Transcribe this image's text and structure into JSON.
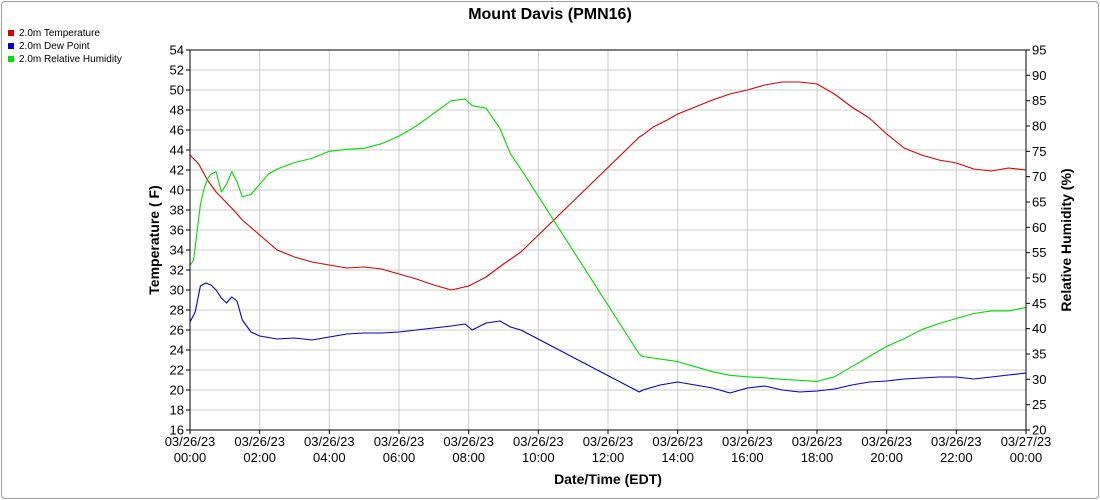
{
  "chart_data": {
    "type": "line",
    "title": "Mount Davis (PMN16)",
    "xlabel": "Date/Time (EDT)",
    "ylabel_left": "Temperature ( F)",
    "ylabel_right": "Relative Humidity (%)",
    "y_left_range": [
      16,
      54
    ],
    "y_left_ticks": [
      16,
      18,
      20,
      22,
      24,
      26,
      28,
      30,
      32,
      34,
      36,
      38,
      40,
      42,
      44,
      46,
      48,
      50,
      52,
      54
    ],
    "y_right_range": [
      20,
      95
    ],
    "y_right_ticks": [
      20,
      25,
      30,
      35,
      40,
      45,
      50,
      55,
      60,
      65,
      70,
      75,
      80,
      85,
      90,
      95
    ],
    "x_range_hours": [
      0,
      24
    ],
    "x_ticks": [
      {
        "hour": 0,
        "date": "03/26/23",
        "time": "00:00"
      },
      {
        "hour": 2,
        "date": "03/26/23",
        "time": "02:00"
      },
      {
        "hour": 4,
        "date": "03/26/23",
        "time": "04:00"
      },
      {
        "hour": 6,
        "date": "03/26/23",
        "time": "06:00"
      },
      {
        "hour": 8,
        "date": "03/26/23",
        "time": "08:00"
      },
      {
        "hour": 10,
        "date": "03/26/23",
        "time": "10:00"
      },
      {
        "hour": 12,
        "date": "03/26/23",
        "time": "12:00"
      },
      {
        "hour": 14,
        "date": "03/26/23",
        "time": "14:00"
      },
      {
        "hour": 16,
        "date": "03/26/23",
        "time": "16:00"
      },
      {
        "hour": 18,
        "date": "03/26/23",
        "time": "18:00"
      },
      {
        "hour": 20,
        "date": "03/26/23",
        "time": "20:00"
      },
      {
        "hour": 22,
        "date": "03/26/23",
        "time": "22:00"
      },
      {
        "hour": 24,
        "date": "03/27/23",
        "time": "00:00"
      }
    ],
    "grid": true,
    "legend_position": "top-left",
    "series": [
      {
        "name": "2.0m Temperature",
        "color": "#dd0000",
        "axis": "left",
        "x": [
          0,
          0.25,
          0.5,
          0.75,
          1.0,
          1.25,
          1.5,
          2.0,
          2.5,
          3.0,
          3.5,
          4.0,
          4.5,
          5.0,
          5.5,
          6.0,
          6.5,
          7.0,
          7.5,
          8.0,
          8.5,
          9.0,
          9.5,
          12.9,
          13.0,
          13.3,
          13.7,
          14.0,
          14.5,
          15.0,
          15.5,
          16.0,
          16.5,
          17.0,
          17.5,
          18.0,
          18.5,
          19.0,
          19.5,
          20.0,
          20.5,
          21.0,
          21.5,
          22.0,
          22.5,
          23.0,
          23.5,
          24.0
        ],
        "y": [
          43.5,
          42.6,
          41.0,
          39.8,
          38.9,
          38.0,
          37.0,
          35.5,
          34.0,
          33.3,
          32.8,
          32.5,
          32.2,
          32.3,
          32.1,
          31.6,
          31.1,
          30.5,
          30.0,
          30.4,
          31.3,
          32.6,
          33.8,
          45.3,
          45.5,
          46.3,
          47.0,
          47.6,
          48.3,
          49.0,
          49.6,
          50.0,
          50.5,
          50.8,
          50.8,
          50.6,
          49.6,
          48.3,
          47.2,
          45.6,
          44.2,
          43.5,
          43.0,
          42.7,
          42.1,
          41.9,
          42.2,
          42.0
        ]
      },
      {
        "name": "2.0m Dew Point",
        "color": "#0000cc",
        "axis": "left",
        "x": [
          0,
          0.15,
          0.3,
          0.45,
          0.6,
          0.75,
          0.9,
          1.05,
          1.2,
          1.35,
          1.5,
          1.75,
          2.0,
          2.5,
          3.0,
          3.5,
          4.0,
          4.5,
          5.0,
          5.5,
          6.0,
          6.5,
          7.0,
          7.5,
          7.9,
          8.1,
          8.5,
          8.9,
          9.2,
          9.5,
          12.9,
          13.0,
          13.5,
          14.0,
          14.5,
          15.0,
          15.5,
          16.0,
          16.5,
          17.0,
          17.5,
          18.0,
          18.5,
          19.0,
          19.5,
          20.0,
          20.5,
          21.0,
          21.5,
          22.0,
          22.5,
          23.0,
          23.5,
          24.0
        ],
        "y": [
          26.8,
          27.8,
          30.4,
          30.7,
          30.5,
          30.0,
          29.2,
          28.7,
          29.3,
          28.9,
          27.0,
          25.8,
          25.4,
          25.1,
          25.2,
          25.0,
          25.3,
          25.6,
          25.7,
          25.7,
          25.8,
          26.0,
          26.2,
          26.4,
          26.6,
          26.0,
          26.7,
          26.9,
          26.3,
          26.0,
          19.8,
          20.0,
          20.5,
          20.8,
          20.5,
          20.2,
          19.7,
          20.2,
          20.4,
          20.0,
          19.8,
          19.9,
          20.1,
          20.5,
          20.8,
          20.9,
          21.1,
          21.2,
          21.3,
          21.3,
          21.1,
          21.3,
          21.5,
          21.7
        ]
      },
      {
        "name": "2.0m Relative Humidity",
        "color": "#00dd00",
        "axis": "right",
        "x": [
          0,
          0.1,
          0.2,
          0.3,
          0.4,
          0.5,
          0.6,
          0.75,
          0.9,
          1.05,
          1.2,
          1.35,
          1.5,
          1.75,
          2.0,
          2.25,
          2.5,
          3.0,
          3.5,
          4.0,
          4.5,
          5.0,
          5.5,
          6.0,
          6.5,
          7.0,
          7.5,
          7.9,
          8.1,
          8.5,
          8.9,
          9.2,
          9.5,
          12.9,
          13.0,
          13.5,
          14.0,
          14.5,
          15.0,
          15.5,
          16.0,
          16.5,
          17.0,
          17.5,
          18.0,
          18.5,
          19.0,
          19.5,
          20.0,
          20.5,
          21.0,
          21.5,
          22.0,
          22.5,
          23.0,
          23.5,
          24.0
        ],
        "y": [
          52.5,
          53.5,
          59.0,
          64.5,
          67.5,
          69.5,
          70.5,
          71.0,
          67.0,
          68.5,
          71.0,
          69.0,
          66.0,
          66.5,
          68.5,
          70.5,
          71.5,
          72.8,
          73.6,
          75.0,
          75.4,
          75.6,
          76.5,
          78.0,
          80.0,
          82.5,
          85.0,
          85.3,
          84.0,
          83.5,
          79.5,
          74.5,
          71.5,
          35.0,
          34.5,
          34.0,
          33.5,
          32.5,
          31.5,
          30.8,
          30.5,
          30.3,
          30.0,
          29.8,
          29.6,
          30.5,
          32.5,
          34.5,
          36.5,
          38.0,
          39.8,
          41.0,
          42.0,
          43.0,
          43.5,
          43.5,
          44.2
        ]
      }
    ]
  }
}
